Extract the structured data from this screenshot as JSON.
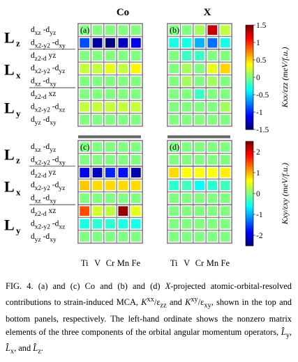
{
  "figure": {
    "column_titles": [
      "Co",
      "X"
    ],
    "panel_labels": [
      "(a)",
      "(b)",
      "(c)",
      "(d)"
    ],
    "x_tick_labels": [
      "Ti",
      "V",
      "Cr",
      "Mn",
      "Fe"
    ],
    "operator_groups": [
      {
        "main": "L",
        "sub": "z",
        "rows": [
          "xz -d yz",
          "x2-y2 -d xy"
        ]
      },
      {
        "main": "L",
        "sub": "x",
        "rows": [
          "z2-d yz",
          "x2-y2 -d yz",
          "xz -d xy"
        ]
      },
      {
        "main": "L",
        "sub": "y",
        "rows": [
          "z2-d xz",
          "x2-y2 -d xz",
          "yz -d xy"
        ]
      }
    ],
    "colorbar_top": {
      "label": "Kxx/εzz (meV/f.u.)",
      "ticks": [
        "1.5",
        "1",
        "0.5",
        "0",
        "-0.5",
        "-1",
        "-1.5"
      ],
      "range": [
        -1.5,
        1.5
      ]
    },
    "colorbar_bottom": {
      "label": "Kxy/εxy (meV/f.u.)",
      "ticks": [
        "2",
        "1",
        "0",
        "-1",
        "-2"
      ],
      "range": [
        -2.5,
        2.5
      ]
    }
  },
  "chart_data": [
    {
      "type": "heatmap",
      "panel": "(a)",
      "title": "Co",
      "x": [
        "Ti",
        "V",
        "Cr",
        "Mn",
        "Fe"
      ],
      "y": [
        "Lz: dxz-dyz",
        "Lz: dx2-y2-dxy",
        "Lx: dz2-dyz",
        "Lx: dx2-y2-dyz",
        "Lx: dxz-dxy",
        "Ly: dz2-dxz",
        "Ly: dx2-y2-dxz",
        "Ly: dyz-dxy"
      ],
      "values": [
        [
          0.0,
          0.0,
          0.0,
          0.0,
          0.0
        ],
        [
          -0.9,
          -1.4,
          -1.5,
          -1.3,
          -1.2
        ],
        [
          0.0,
          0.0,
          0.0,
          0.0,
          0.0
        ],
        [
          0.2,
          0.2,
          0.3,
          0.2,
          0.4
        ],
        [
          0.0,
          0.0,
          0.0,
          0.0,
          0.0
        ],
        [
          0.0,
          0.0,
          0.0,
          0.0,
          0.0
        ],
        [
          0.2,
          0.2,
          0.2,
          0.2,
          0.2
        ],
        [
          0.0,
          0.0,
          0.0,
          0.0,
          0.0
        ]
      ]
    },
    {
      "type": "heatmap",
      "panel": "(b)",
      "title": "X",
      "x": [
        "Ti",
        "V",
        "Cr",
        "Mn",
        "Fe"
      ],
      "y": [
        "Lz: dxz-dyz",
        "Lz: dx2-y2-dxy",
        "Lx: dz2-dyz",
        "Lx: dx2-y2-dyz",
        "Lx: dxz-dxy",
        "Ly: dz2-dxz",
        "Ly: dx2-y2-dxz",
        "Ly: dyz-dxy"
      ],
      "values": [
        [
          0.0,
          0.0,
          0.1,
          1.3,
          0.2
        ],
        [
          -0.3,
          -0.3,
          -0.6,
          -0.8,
          -0.3
        ],
        [
          0.0,
          -0.2,
          -0.2,
          0.0,
          0.0
        ],
        [
          0.0,
          0.1,
          0.0,
          0.3,
          0.5
        ],
        [
          0.0,
          0.1,
          0.0,
          0.1,
          0.0
        ],
        [
          0.0,
          0.0,
          -0.2,
          0.0,
          0.0
        ],
        [
          0.0,
          0.0,
          0.0,
          0.0,
          0.1
        ],
        [
          0.0,
          0.0,
          0.0,
          0.0,
          0.0
        ]
      ]
    },
    {
      "type": "heatmap",
      "panel": "(c)",
      "title": "Co",
      "x": [
        "Ti",
        "V",
        "Cr",
        "Mn",
        "Fe"
      ],
      "y": [
        "Lz: dxz-dyz",
        "Lz: dx2-y2-dxy",
        "Lx: dz2-dyz",
        "Lx: dx2-y2-dyz",
        "Lx: dxz-dxy",
        "Ly: dz2-dxz",
        "Ly: dx2-y2-dxz",
        "Ly: dyz-dxy"
      ],
      "values": [
        [
          0.0,
          0.0,
          0.0,
          0.0,
          0.0
        ],
        [
          0.0,
          0.0,
          0.0,
          0.0,
          0.0
        ],
        [
          -2.0,
          -2.2,
          -1.7,
          -1.8,
          -2.3
        ],
        [
          0.9,
          0.8,
          0.8,
          0.8,
          0.8
        ],
        [
          0.0,
          0.0,
          0.0,
          0.0,
          0.0
        ],
        [
          1.5,
          0.4,
          0.3,
          2.4,
          0.5
        ],
        [
          -0.5,
          -0.4,
          -0.4,
          -0.5,
          -0.5
        ],
        [
          0.0,
          0.0,
          0.0,
          0.0,
          0.0
        ]
      ]
    },
    {
      "type": "heatmap",
      "panel": "(d)",
      "title": "X",
      "x": [
        "Ti",
        "V",
        "Cr",
        "Mn",
        "Fe"
      ],
      "y": [
        "Lz: dxz-dyz",
        "Lz: dx2-y2-dxy",
        "Lx: dz2-dyz",
        "Lx: dx2-y2-dyz",
        "Lx: dxz-dxy",
        "Ly: dz2-dxz",
        "Ly: dx2-y2-dxz",
        "Ly: dyz-dxy"
      ],
      "values": [
        [
          0.0,
          0.0,
          0.0,
          0.0,
          0.0
        ],
        [
          0.0,
          0.0,
          0.0,
          0.0,
          0.0
        ],
        [
          0.8,
          0.6,
          0.6,
          0.6,
          0.7
        ],
        [
          -0.4,
          -0.3,
          -0.6,
          -0.4,
          -0.3
        ],
        [
          0.0,
          0.0,
          0.0,
          0.0,
          0.0
        ],
        [
          0.0,
          0.0,
          0.0,
          0.0,
          0.0
        ],
        [
          0.0,
          0.0,
          0.0,
          0.0,
          0.0
        ],
        [
          0.0,
          0.0,
          0.0,
          0.0,
          0.0
        ]
      ]
    }
  ],
  "caption": {
    "label": "FIG. 4.",
    "text_1": "(a) and (c) Co and (b) and (d)",
    "var_x": "X",
    "text_2": "-projected atomic-orbital-resolved contributions to strain-induced MCA,",
    "k1": "K",
    "k1_sup": "xx",
    "k1_den": "/ε",
    "k1_sub": "zz",
    "and": "and",
    "k2": "K",
    "k2_sup": "xy",
    "k2_den": "/ε",
    "k2_sub": "xy",
    "text_3": ", shown in the top and bottom panels, respectively. The left-hand ordinate shows the nonzero matrix elements of the three components of the orbital angular momentum operators,",
    "ops": [
      "L̂",
      "L̂",
      "L̂"
    ],
    "op_subs": [
      "y",
      "x",
      "z"
    ],
    "text_4": ", and",
    "text_end": "."
  }
}
